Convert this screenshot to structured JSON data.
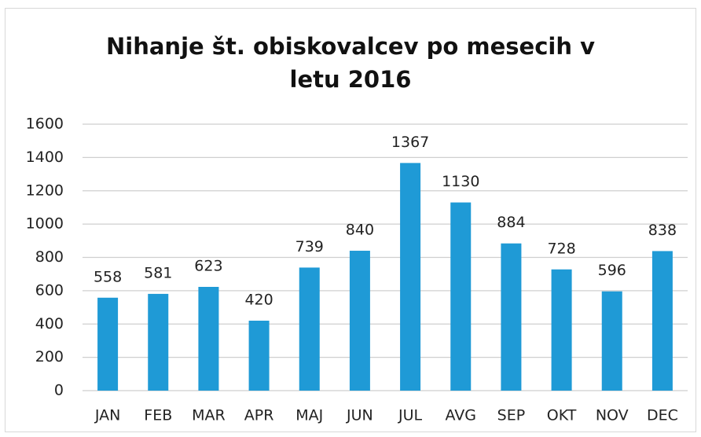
{
  "chart_data": {
    "type": "bar",
    "title": "Nihanje št. obiskovalcev po mesecih v letu 2016",
    "categories": [
      "JAN",
      "FEB",
      "MAR",
      "APR",
      "MAJ",
      "JUN",
      "JUL",
      "AVG",
      "SEP",
      "OKT",
      "NOV",
      "DEC"
    ],
    "values": [
      558,
      581,
      623,
      420,
      739,
      840,
      1367,
      1130,
      884,
      728,
      596,
      838
    ],
    "color": "#1f9ad6",
    "ylim": [
      0,
      1600
    ],
    "yticks": [
      0,
      200,
      400,
      600,
      800,
      1000,
      1200,
      1400,
      1600
    ],
    "grid": true
  }
}
